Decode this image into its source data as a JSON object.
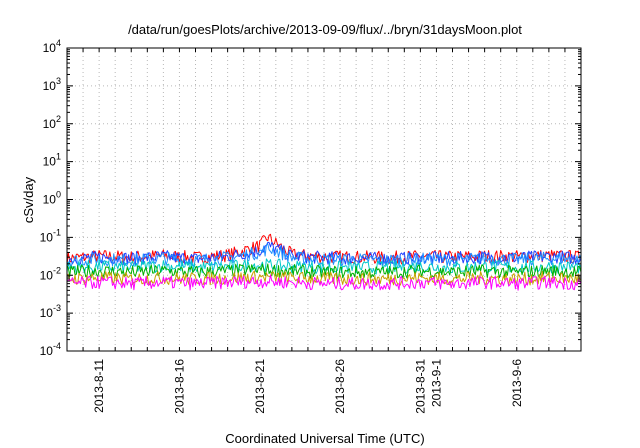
{
  "chart_data": {
    "type": "line",
    "title": "/data/run/goesPlots/archive/2013-09-09/flux/../bryn/31daysMoon.plot",
    "xlabel": "Coordinated Universal Time (UTC)",
    "ylabel": "cSv/day",
    "yscale": "log",
    "ylim": [
      0.0001,
      10000
    ],
    "xlim": [
      "2013-08-09",
      "2013-09-10"
    ],
    "grid": true,
    "y_ticks": [
      {
        "base": "10",
        "exp": "-4",
        "value": 0.0001
      },
      {
        "base": "10",
        "exp": "-3",
        "value": 0.001
      },
      {
        "base": "10",
        "exp": "-2",
        "value": 0.01
      },
      {
        "base": "10",
        "exp": "-1",
        "value": 0.1
      },
      {
        "base": "10",
        "exp": "0",
        "value": 1
      },
      {
        "base": "10",
        "exp": "1",
        "value": 10
      },
      {
        "base": "10",
        "exp": "2",
        "value": 100
      },
      {
        "base": "10",
        "exp": "3",
        "value": 1000
      },
      {
        "base": "10",
        "exp": "4",
        "value": 10000
      }
    ],
    "x_ticks": [
      {
        "label": "2013-8-11",
        "date": "2013-08-11"
      },
      {
        "label": "2013-8-16",
        "date": "2013-08-16"
      },
      {
        "label": "2013-8-21",
        "date": "2013-08-21"
      },
      {
        "label": "2013-8-26",
        "date": "2013-08-26"
      },
      {
        "label": "2013-8-31",
        "date": "2013-08-31"
      },
      {
        "label": "2013-9-1",
        "date": "2013-09-01"
      },
      {
        "label": "2013-9-6",
        "date": "2013-09-06"
      }
    ],
    "series": [
      {
        "color": "#ff0000",
        "x": [
          "2013-08-09",
          "2013-08-11",
          "2013-08-13",
          "2013-08-15",
          "2013-08-17",
          "2013-08-19",
          "2013-08-21",
          "2013-08-21T12",
          "2013-08-22",
          "2013-08-23",
          "2013-08-25",
          "2013-08-27",
          "2013-08-29",
          "2013-08-31",
          "2013-09-02",
          "2013-09-04",
          "2013-09-06",
          "2013-09-08",
          "2013-09-10"
        ],
        "y": [
          0.028,
          0.032,
          0.03,
          0.033,
          0.029,
          0.034,
          0.06,
          0.1,
          0.07,
          0.035,
          0.031,
          0.03,
          0.029,
          0.031,
          0.03,
          0.032,
          0.031,
          0.033,
          0.03
        ]
      },
      {
        "color": "#2040ff",
        "x": [
          "2013-08-09",
          "2013-08-11",
          "2013-08-13",
          "2013-08-15",
          "2013-08-17",
          "2013-08-19",
          "2013-08-21",
          "2013-08-21T12",
          "2013-08-22",
          "2013-08-23",
          "2013-08-25",
          "2013-08-27",
          "2013-08-29",
          "2013-08-31",
          "2013-09-02",
          "2013-09-04",
          "2013-09-06",
          "2013-09-08",
          "2013-09-10"
        ],
        "y": [
          0.026,
          0.03,
          0.028,
          0.031,
          0.027,
          0.031,
          0.045,
          0.06,
          0.05,
          0.032,
          0.029,
          0.028,
          0.027,
          0.029,
          0.028,
          0.03,
          0.029,
          0.031,
          0.028
        ]
      },
      {
        "color": "#1e90ff",
        "x": [
          "2013-08-09",
          "2013-08-11",
          "2013-08-13",
          "2013-08-15",
          "2013-08-17",
          "2013-08-19",
          "2013-08-21",
          "2013-08-21T12",
          "2013-08-22",
          "2013-08-23",
          "2013-08-25",
          "2013-08-27",
          "2013-08-29",
          "2013-08-31",
          "2013-09-02",
          "2013-09-04",
          "2013-09-06",
          "2013-09-08",
          "2013-09-10"
        ],
        "y": [
          0.024,
          0.027,
          0.025,
          0.028,
          0.025,
          0.029,
          0.04,
          0.05,
          0.045,
          0.029,
          0.026,
          0.026,
          0.025,
          0.027,
          0.026,
          0.027,
          0.026,
          0.028,
          0.026
        ]
      },
      {
        "color": "#00c8c8",
        "x": [
          "2013-08-09",
          "2013-08-11",
          "2013-08-13",
          "2013-08-15",
          "2013-08-17",
          "2013-08-19",
          "2013-08-21",
          "2013-08-23",
          "2013-08-25",
          "2013-08-27",
          "2013-08-29",
          "2013-08-31",
          "2013-09-02",
          "2013-09-04",
          "2013-09-06",
          "2013-09-08",
          "2013-09-10"
        ],
        "y": [
          0.016,
          0.017,
          0.016,
          0.018,
          0.016,
          0.017,
          0.019,
          0.017,
          0.016,
          0.016,
          0.016,
          0.017,
          0.016,
          0.017,
          0.016,
          0.017,
          0.016
        ]
      },
      {
        "color": "#00b000",
        "x": [
          "2013-08-09",
          "2013-08-11",
          "2013-08-13",
          "2013-08-15",
          "2013-08-17",
          "2013-08-19",
          "2013-08-21",
          "2013-08-23",
          "2013-08-25",
          "2013-08-27",
          "2013-08-29",
          "2013-08-31",
          "2013-09-02",
          "2013-09-04",
          "2013-09-06",
          "2013-09-08",
          "2013-09-10"
        ],
        "y": [
          0.012,
          0.013,
          0.012,
          0.013,
          0.012,
          0.013,
          0.014,
          0.013,
          0.012,
          0.012,
          0.012,
          0.013,
          0.012,
          0.013,
          0.012,
          0.013,
          0.012
        ]
      },
      {
        "color": "#c8a000",
        "x": [
          "2013-08-09",
          "2013-08-11",
          "2013-08-13",
          "2013-08-15",
          "2013-08-17",
          "2013-08-19",
          "2013-08-21",
          "2013-08-23",
          "2013-08-25",
          "2013-08-27",
          "2013-08-29",
          "2013-08-31",
          "2013-09-02",
          "2013-09-04",
          "2013-09-06",
          "2013-09-08",
          "2013-09-10"
        ],
        "y": [
          0.008,
          0.0085,
          0.008,
          0.0085,
          0.008,
          0.0085,
          0.009,
          0.0085,
          0.008,
          0.008,
          0.008,
          0.0085,
          0.008,
          0.0085,
          0.008,
          0.0085,
          0.008
        ]
      },
      {
        "color": "#ff00ff",
        "x": [
          "2013-08-09",
          "2013-08-11",
          "2013-08-13",
          "2013-08-15",
          "2013-08-17",
          "2013-08-19",
          "2013-08-21",
          "2013-08-23",
          "2013-08-25",
          "2013-08-27",
          "2013-08-29",
          "2013-08-31",
          "2013-09-02",
          "2013-09-04",
          "2013-09-06",
          "2013-09-08",
          "2013-09-10"
        ],
        "y": [
          0.006,
          0.0065,
          0.006,
          0.0065,
          0.006,
          0.0065,
          0.007,
          0.0065,
          0.006,
          0.006,
          0.006,
          0.0065,
          0.006,
          0.0065,
          0.006,
          0.0065,
          0.006
        ]
      }
    ]
  }
}
